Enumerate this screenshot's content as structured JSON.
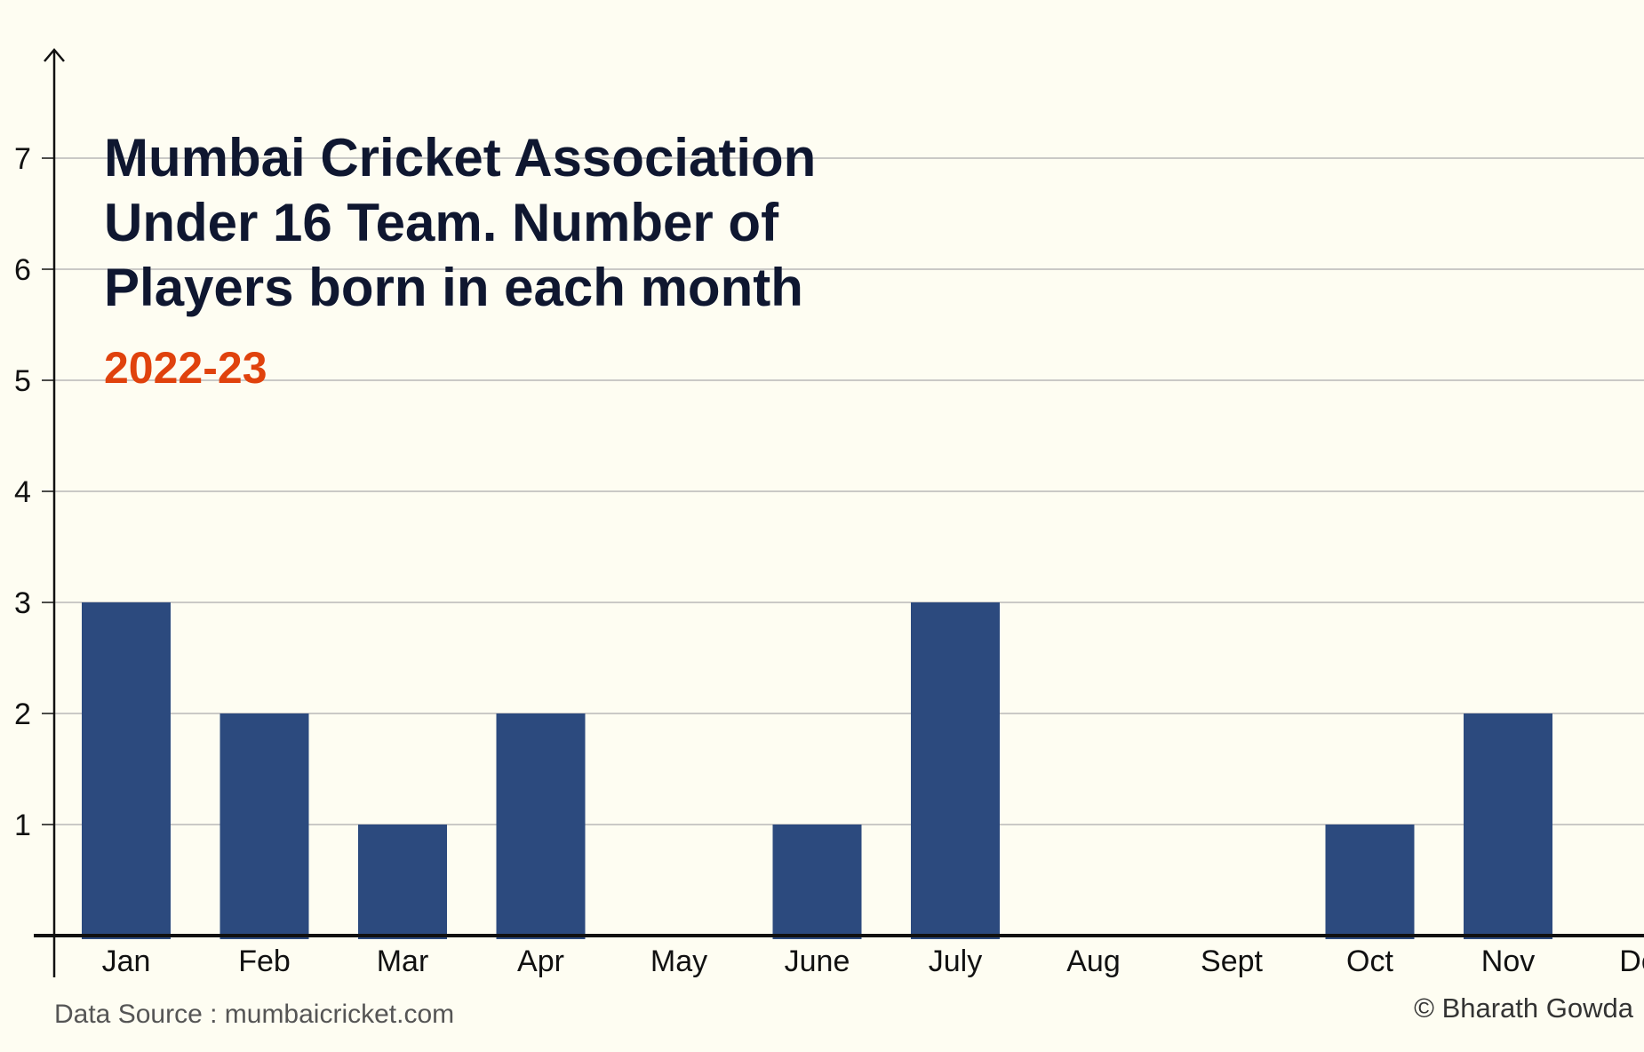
{
  "chart_data": {
    "type": "bar",
    "title_lines": [
      "Mumbai Cricket Association",
      "Under 16 Team. Number of",
      "Players born in each month"
    ],
    "subtitle": "2022-23",
    "xlabel": "",
    "ylabel": "",
    "categories": [
      "Jan",
      "Feb",
      "Mar",
      "Apr",
      "May",
      "June",
      "July",
      "Aug",
      "Sept",
      "Oct",
      "Nov",
      "Dec"
    ],
    "values": [
      3,
      2,
      1,
      2,
      0,
      1,
      3,
      0,
      0,
      1,
      2,
      0
    ],
    "y_ticks": [
      "1",
      "2",
      "3",
      "4",
      "5",
      "6",
      "7"
    ],
    "ylim": [
      0,
      7.8
    ],
    "grid": true,
    "legend": "none"
  },
  "footer": {
    "source": "Data Source : mumbaicricket.com",
    "credit": "© Bharath Gowda"
  },
  "colors": {
    "background": "#fefdf2",
    "bar": "#2c4a7e",
    "title": "#0f1730",
    "subtitle": "#e0420d",
    "grid": "#b8b8b8",
    "axis": "#111111"
  }
}
